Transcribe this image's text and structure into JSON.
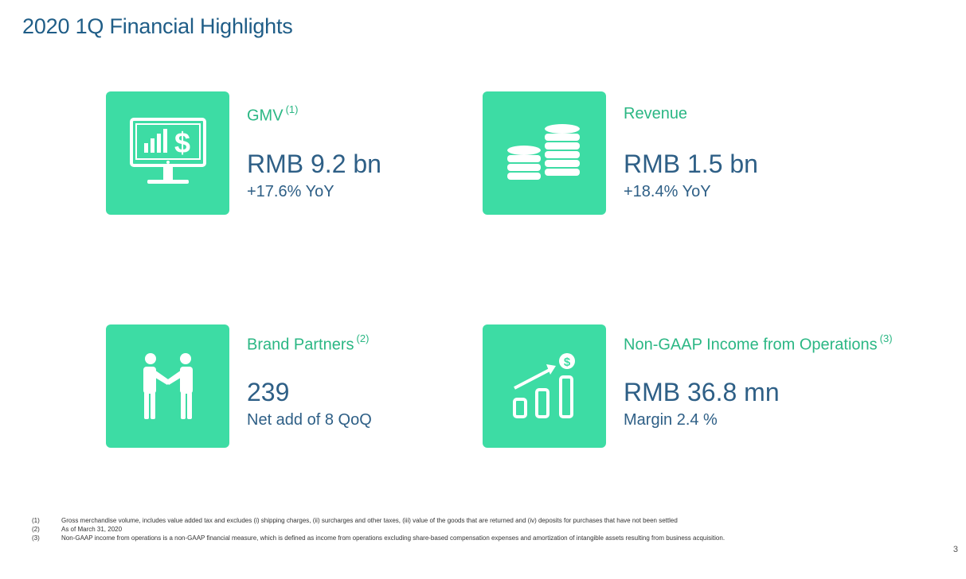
{
  "page": {
    "title": "2020 1Q Financial Highlights",
    "page_number": "3"
  },
  "cards": [
    {
      "icon": "monitor-chart-dollar-icon",
      "label": "GMV",
      "note": "(1)",
      "value": "RMB 9.2 bn",
      "sub": "+17.6% YoY"
    },
    {
      "icon": "coin-stacks-icon",
      "label": "Revenue",
      "note": "",
      "value": "RMB 1.5 bn",
      "sub": "+18.4% YoY"
    },
    {
      "icon": "handshake-icon",
      "label": "Brand Partners",
      "note": "(2)",
      "value": "239",
      "sub": "Net add of 8 QoQ"
    },
    {
      "icon": "growth-bars-dollar-icon",
      "label": "Non-GAAP Income from Operations",
      "note": "(3)",
      "value": "RMB 36.8 mn",
      "sub": "Margin 2.4 %"
    }
  ],
  "footnotes": [
    {
      "num": "(1)",
      "text": "Gross merchandise volume, includes value added tax and excludes (i) shipping charges, (ii) surcharges and other taxes, (iii) value of the goods that are returned and (iv) deposits for purchases that have not been settled"
    },
    {
      "num": "(2)",
      "text": "As of March 31, 2020"
    },
    {
      "num": "(3)",
      "text": "Non-GAAP income from operations is a non-GAAP financial measure, which is defined as income from operations excluding share-based compensation expenses and amortization of intangible assets resulting from business acquisition."
    }
  ],
  "colors": {
    "accent": "#3ddca4",
    "label_green": "#2bb784",
    "value_blue": "#2e5f86",
    "title_blue": "#1f5d87"
  }
}
